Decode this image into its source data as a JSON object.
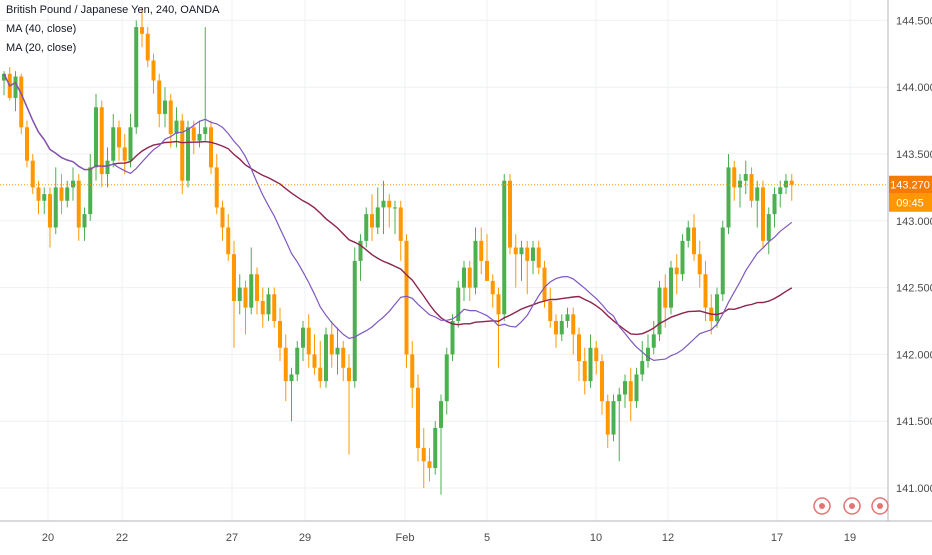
{
  "chart_data": {
    "type": "candlestick",
    "title": "British Pound / Japanese Yen, 240, OANDA",
    "indicators": [
      "MA (40, close)",
      "MA (20, close)"
    ],
    "ylim": [
      140.8,
      144.65
    ],
    "y_ticks": [
      "144.500",
      "144.000",
      "143.500",
      "143.000",
      "142.500",
      "142.000",
      "141.500",
      "141.000"
    ],
    "x_ticks": [
      "20",
      "22",
      "27",
      "29",
      "Feb",
      "5",
      "10",
      "12",
      "17",
      "19"
    ],
    "last_price": "143.270",
    "countdown": "09:45",
    "colors": {
      "up": "#4caf50",
      "down": "#ff9800",
      "ma40": "#8e244d",
      "ma20": "#7e57c2",
      "price_line": "#ff9800",
      "badge_price": "#f57c00",
      "badge_time": "#ff9800"
    },
    "grid": true,
    "ohlc": [
      [
        144.05,
        144.12,
        143.94,
        144.1
      ],
      [
        144.1,
        144.15,
        143.9,
        143.92
      ],
      [
        143.92,
        144.12,
        143.82,
        144.08
      ],
      [
        144.08,
        144.1,
        143.65,
        143.7
      ],
      [
        143.7,
        143.75,
        143.4,
        143.45
      ],
      [
        143.45,
        143.5,
        143.2,
        143.25
      ],
      [
        143.25,
        143.3,
        143.05,
        143.15
      ],
      [
        143.15,
        143.25,
        143.05,
        143.2
      ],
      [
        143.2,
        143.25,
        142.8,
        142.95
      ],
      [
        142.95,
        143.4,
        142.9,
        143.25
      ],
      [
        143.25,
        143.35,
        143.05,
        143.15
      ],
      [
        143.15,
        143.3,
        143.1,
        143.25
      ],
      [
        143.25,
        143.4,
        143.15,
        143.3
      ],
      [
        143.3,
        143.35,
        142.85,
        142.95
      ],
      [
        142.95,
        143.1,
        142.85,
        143.05
      ],
      [
        143.05,
        143.5,
        143.0,
        143.4
      ],
      [
        143.4,
        143.95,
        143.3,
        143.85
      ],
      [
        143.85,
        143.9,
        143.25,
        143.35
      ],
      [
        143.35,
        143.55,
        143.25,
        143.45
      ],
      [
        143.45,
        143.8,
        143.4,
        143.7
      ],
      [
        143.7,
        143.75,
        143.45,
        143.55
      ],
      [
        143.55,
        143.65,
        143.35,
        143.45
      ],
      [
        143.45,
        143.8,
        143.4,
        143.7
      ],
      [
        143.7,
        144.5,
        143.65,
        144.45
      ],
      [
        144.45,
        144.6,
        144.3,
        144.4
      ],
      [
        144.4,
        144.45,
        144.15,
        144.2
      ],
      [
        144.2,
        144.25,
        143.95,
        144.05
      ],
      [
        144.05,
        144.1,
        143.7,
        143.8
      ],
      [
        143.8,
        144.0,
        143.7,
        143.9
      ],
      [
        143.9,
        143.95,
        143.55,
        143.65
      ],
      [
        143.65,
        143.85,
        143.55,
        143.75
      ],
      [
        143.75,
        143.8,
        143.2,
        143.3
      ],
      [
        143.3,
        143.75,
        143.25,
        143.7
      ],
      [
        143.7,
        143.75,
        143.5,
        143.6
      ],
      [
        143.6,
        143.75,
        143.55,
        143.65
      ],
      [
        143.65,
        144.45,
        143.6,
        143.7
      ],
      [
        143.7,
        143.75,
        143.35,
        143.4
      ],
      [
        143.4,
        143.5,
        143.05,
        143.1
      ],
      [
        143.1,
        143.15,
        142.85,
        142.95
      ],
      [
        142.95,
        143.05,
        142.7,
        142.75
      ],
      [
        142.75,
        142.85,
        142.05,
        142.4
      ],
      [
        142.4,
        142.6,
        142.3,
        142.5
      ],
      [
        142.5,
        142.55,
        142.15,
        142.35
      ],
      [
        142.35,
        142.8,
        142.3,
        142.6
      ],
      [
        142.6,
        142.65,
        142.3,
        142.4
      ],
      [
        142.4,
        142.5,
        142.2,
        142.3
      ],
      [
        142.3,
        142.5,
        142.25,
        142.45
      ],
      [
        142.45,
        142.5,
        142.2,
        142.25
      ],
      [
        142.25,
        142.35,
        141.95,
        142.05
      ],
      [
        142.05,
        142.15,
        141.65,
        141.8
      ],
      [
        141.8,
        141.9,
        141.5,
        141.85
      ],
      [
        141.85,
        142.1,
        141.8,
        142.05
      ],
      [
        142.05,
        142.25,
        141.95,
        142.2
      ],
      [
        142.2,
        142.3,
        141.9,
        142.0
      ],
      [
        142.0,
        142.15,
        141.85,
        141.9
      ],
      [
        141.9,
        142.1,
        141.75,
        141.8
      ],
      [
        141.8,
        142.2,
        141.75,
        142.15
      ],
      [
        142.15,
        142.25,
        141.9,
        142.0
      ],
      [
        142.0,
        142.2,
        141.85,
        142.05
      ],
      [
        142.05,
        142.1,
        141.8,
        141.9
      ],
      [
        141.9,
        142.0,
        141.25,
        141.8
      ],
      [
        141.8,
        142.8,
        141.75,
        142.7
      ],
      [
        142.7,
        142.9,
        142.55,
        142.85
      ],
      [
        142.85,
        143.1,
        142.8,
        143.05
      ],
      [
        143.05,
        143.2,
        142.85,
        142.95
      ],
      [
        142.95,
        143.25,
        142.9,
        143.1
      ],
      [
        143.1,
        143.3,
        142.9,
        143.15
      ],
      [
        143.15,
        143.2,
        142.95,
        143.1
      ],
      [
        143.1,
        143.15,
        142.9,
        143.1
      ],
      [
        143.1,
        143.15,
        142.7,
        142.85
      ],
      [
        142.85,
        142.9,
        141.9,
        142.0
      ],
      [
        142.0,
        142.1,
        141.6,
        141.75
      ],
      [
        141.75,
        141.85,
        141.2,
        141.3
      ],
      [
        141.3,
        141.45,
        141.0,
        141.2
      ],
      [
        141.2,
        141.3,
        141.05,
        141.15
      ],
      [
        141.15,
        141.5,
        141.1,
        141.45
      ],
      [
        141.45,
        141.7,
        140.95,
        141.65
      ],
      [
        141.65,
        142.05,
        141.55,
        142.0
      ],
      [
        142.0,
        142.3,
        141.95,
        142.25
      ],
      [
        142.25,
        142.55,
        142.2,
        142.5
      ],
      [
        142.5,
        142.7,
        142.4,
        142.65
      ],
      [
        142.65,
        142.7,
        142.4,
        142.5
      ],
      [
        142.5,
        142.95,
        142.45,
        142.85
      ],
      [
        142.85,
        142.95,
        142.6,
        142.7
      ],
      [
        142.7,
        142.9,
        142.55,
        142.55
      ],
      [
        142.55,
        142.6,
        142.35,
        142.45
      ],
      [
        142.45,
        142.5,
        141.9,
        142.3
      ],
      [
        142.3,
        143.35,
        142.25,
        143.3
      ],
      [
        143.3,
        143.35,
        142.75,
        142.8
      ],
      [
        142.8,
        142.9,
        142.5,
        142.75
      ],
      [
        142.75,
        142.85,
        142.55,
        142.8
      ],
      [
        142.8,
        142.85,
        142.45,
        142.7
      ],
      [
        142.7,
        142.85,
        142.6,
        142.8
      ],
      [
        142.8,
        142.85,
        142.6,
        142.65
      ],
      [
        142.65,
        142.7,
        142.35,
        142.4
      ],
      [
        142.4,
        142.5,
        142.2,
        142.25
      ],
      [
        142.25,
        142.3,
        142.05,
        142.15
      ],
      [
        142.15,
        142.3,
        142.1,
        142.25
      ],
      [
        142.25,
        142.35,
        142.2,
        142.3
      ],
      [
        142.3,
        142.35,
        142.0,
        142.15
      ],
      [
        142.15,
        142.2,
        141.8,
        141.95
      ],
      [
        141.95,
        142.05,
        141.7,
        141.8
      ],
      [
        141.8,
        142.15,
        141.75,
        142.05
      ],
      [
        142.05,
        142.1,
        141.85,
        141.95
      ],
      [
        141.95,
        142.0,
        141.55,
        141.65
      ],
      [
        141.65,
        141.7,
        141.3,
        141.4
      ],
      [
        141.4,
        141.7,
        141.35,
        141.65
      ],
      [
        141.65,
        141.75,
        141.2,
        141.7
      ],
      [
        141.7,
        141.85,
        141.6,
        141.8
      ],
      [
        141.8,
        141.9,
        141.5,
        141.65
      ],
      [
        141.65,
        141.9,
        141.6,
        141.85
      ],
      [
        141.85,
        142.1,
        141.8,
        141.95
      ],
      [
        141.95,
        142.15,
        141.9,
        142.05
      ],
      [
        142.05,
        142.25,
        142.0,
        142.15
      ],
      [
        142.15,
        142.55,
        142.1,
        142.5
      ],
      [
        142.5,
        142.6,
        142.2,
        142.35
      ],
      [
        142.35,
        142.7,
        142.3,
        142.65
      ],
      [
        142.65,
        142.75,
        142.45,
        142.6
      ],
      [
        142.6,
        142.9,
        142.55,
        142.85
      ],
      [
        142.85,
        143.0,
        142.8,
        142.95
      ],
      [
        142.95,
        143.05,
        142.7,
        142.75
      ],
      [
        142.75,
        142.85,
        142.5,
        142.6
      ],
      [
        142.6,
        142.7,
        142.25,
        142.35
      ],
      [
        142.35,
        142.45,
        142.15,
        142.25
      ],
      [
        142.25,
        142.5,
        142.2,
        142.45
      ],
      [
        142.45,
        143.0,
        142.4,
        142.95
      ],
      [
        142.95,
        143.5,
        142.9,
        143.4
      ],
      [
        143.4,
        143.45,
        143.15,
        143.25
      ],
      [
        143.25,
        143.35,
        143.1,
        143.3
      ],
      [
        143.3,
        143.45,
        143.2,
        143.35
      ],
      [
        143.35,
        143.4,
        143.1,
        143.15
      ],
      [
        143.15,
        143.3,
        142.95,
        143.25
      ],
      [
        143.25,
        143.3,
        142.8,
        142.85
      ],
      [
        142.85,
        143.1,
        142.75,
        143.05
      ],
      [
        143.05,
        143.25,
        142.95,
        143.2
      ],
      [
        143.2,
        143.3,
        143.1,
        143.25
      ],
      [
        143.25,
        143.35,
        143.2,
        143.3
      ],
      [
        143.3,
        143.35,
        143.15,
        143.27
      ]
    ]
  }
}
